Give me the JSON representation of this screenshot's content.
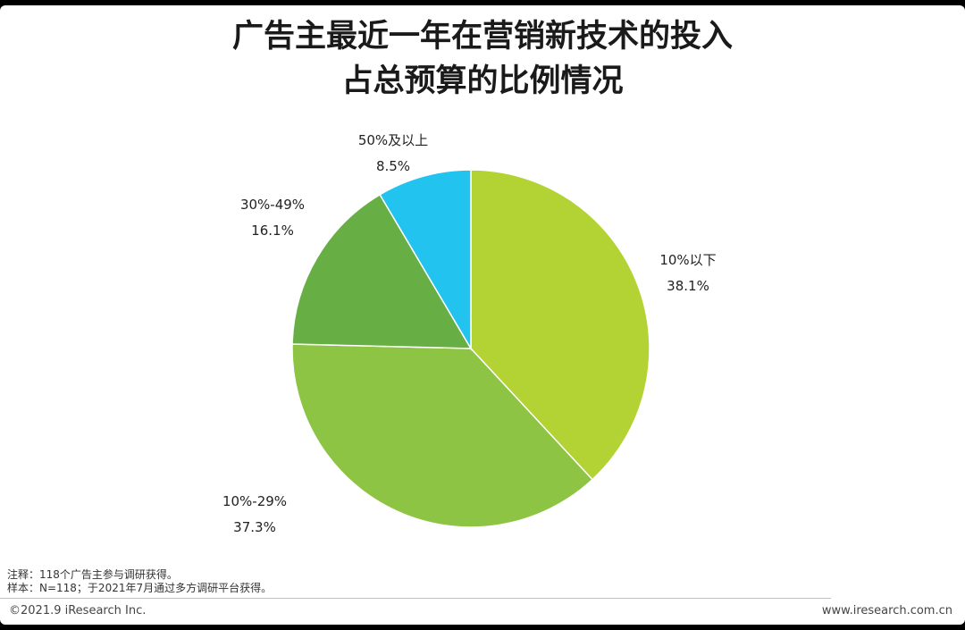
{
  "colors": {
    "background": "#ffffff",
    "slice_colors": [
      "#b3d335",
      "#8dc443",
      "#67ae44",
      "#22c4ef"
    ]
  },
  "chart_data": {
    "type": "pie",
    "title": "广告主最近一年在营销新技术的投入占总预算的比例情况",
    "title_lines": [
      "广告主最近一年在营销新技术的投入",
      "占总预算的比例情况"
    ],
    "slices": [
      {
        "label": "10%以下",
        "value": 38.1,
        "display": "38.1%"
      },
      {
        "label": "10%-29%",
        "value": 37.3,
        "display": "37.3%"
      },
      {
        "label": "30%-49%",
        "value": 16.1,
        "display": "16.1%"
      },
      {
        "label": "50%及以上",
        "value": 8.5,
        "display": "8.5%"
      }
    ],
    "start": "12 o'clock",
    "direction": "clockwise"
  },
  "notes": {
    "line1": "注释：118个广告主参与调研获得。",
    "line2": "样本：N=118；于2021年7月通过多方调研平台获得。"
  },
  "footer": {
    "copyright": "©2021.9 iResearch Inc.",
    "website": "www.iresearch.com.cn"
  }
}
